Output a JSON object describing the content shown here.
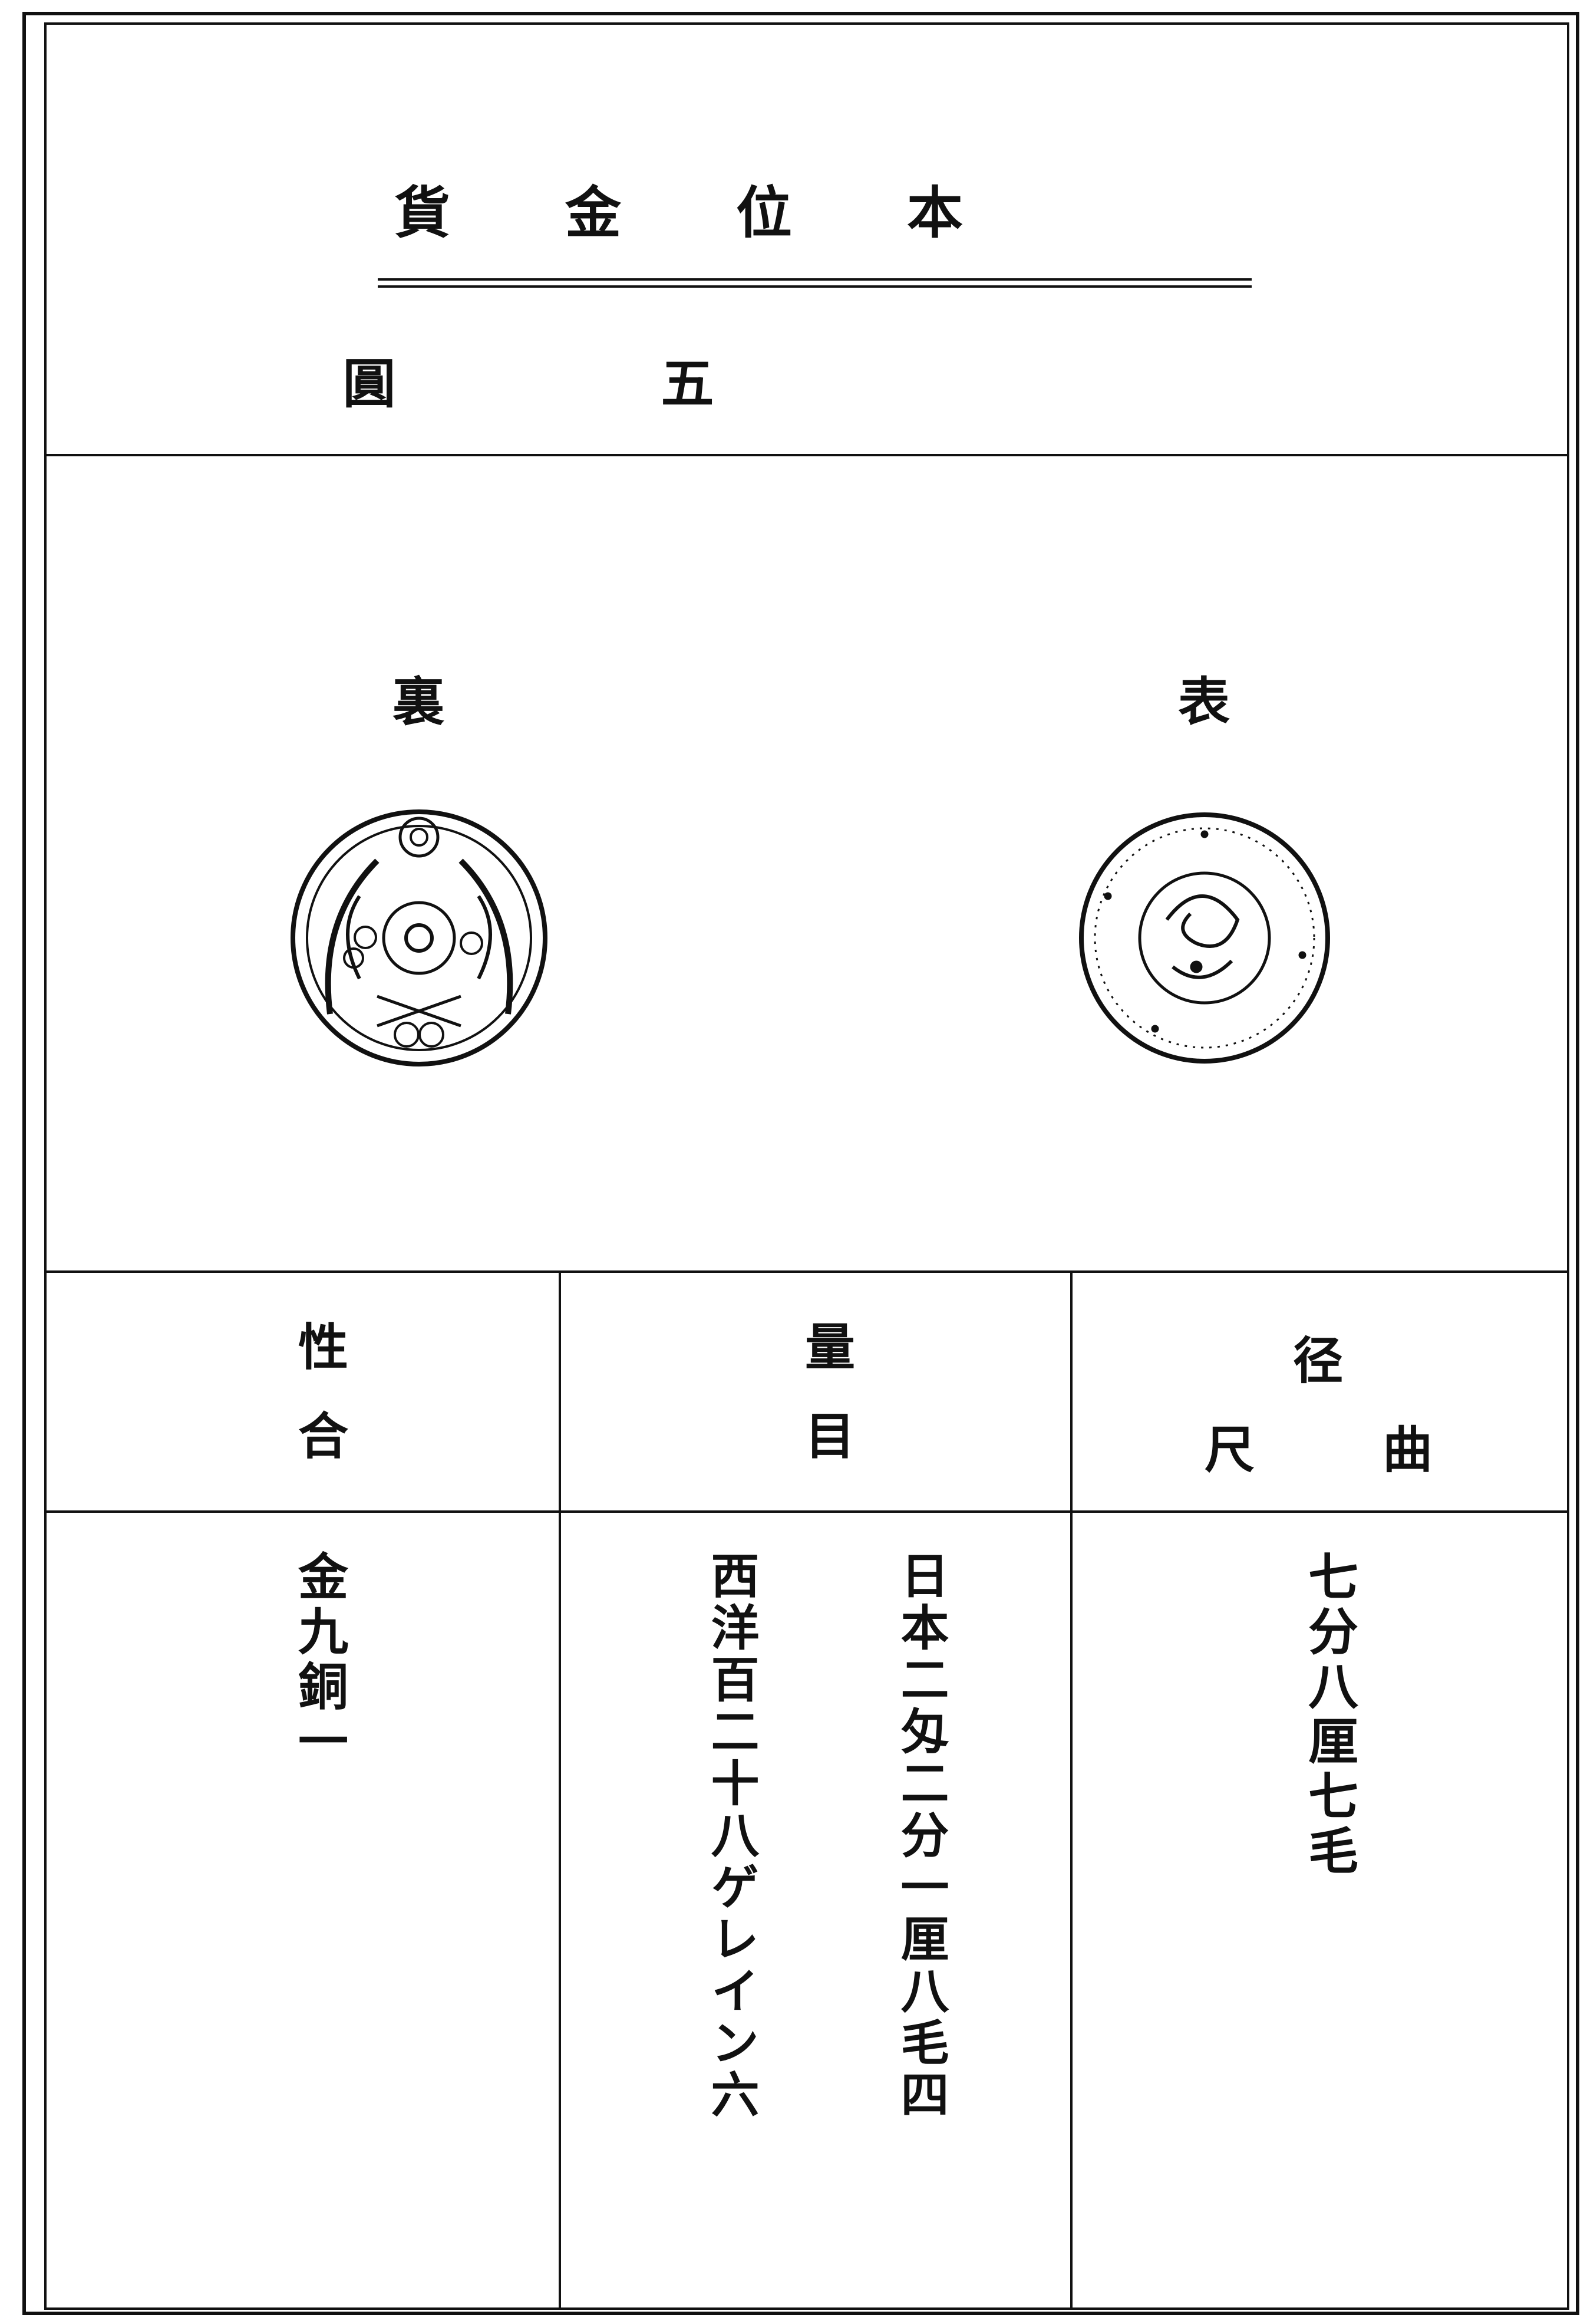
{
  "title": "本位金貨",
  "denomination": "五圓",
  "faces": {
    "reverse": "裏",
    "obverse": "表"
  },
  "table": {
    "headers": [
      "性合",
      "量目",
      {
        "top": "径",
        "bottom": "曲尺"
      }
    ],
    "rows": [
      [
        "金九銅一",
        [
          "日本二匁二分一厘八毛四",
          "西洋百二十八ゲレイン六"
        ],
        "七分八厘七毛"
      ]
    ]
  }
}
